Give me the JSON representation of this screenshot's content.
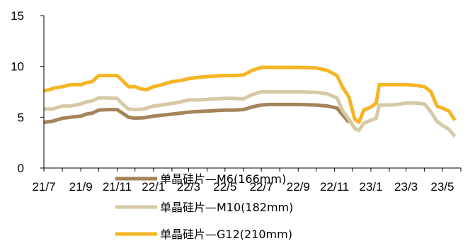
{
  "chart_data": {
    "type": "line",
    "title": "",
    "xlabel": "",
    "ylabel": "",
    "ylim": [
      0,
      15
    ],
    "yticks": [
      0,
      5,
      10,
      15
    ],
    "x_tick_labels": [
      "21/7",
      "21/9",
      "21/11",
      "22/1",
      "22/3",
      "22/5",
      "22/7",
      "22/9",
      "22/11",
      "23/1",
      "23/3",
      "23/5"
    ],
    "x_range_months": [
      "2021-07",
      "2023-05"
    ],
    "grid": false,
    "legend_position": "bottom",
    "series": [
      {
        "name": "单晶硅片—M6(166mm)",
        "color": "#A5845A",
        "points": [
          [
            "2021-07-01",
            4.5
          ],
          [
            "2021-07-15",
            4.6
          ],
          [
            "2021-08-01",
            4.9
          ],
          [
            "2021-08-15",
            5.0
          ],
          [
            "2021-09-01",
            5.1
          ],
          [
            "2021-09-10",
            5.3
          ],
          [
            "2021-09-20",
            5.4
          ],
          [
            "2021-10-01",
            5.7
          ],
          [
            "2021-10-15",
            5.75
          ],
          [
            "2021-11-01",
            5.75
          ],
          [
            "2021-11-10",
            5.4
          ],
          [
            "2021-11-20",
            5.0
          ],
          [
            "2021-12-01",
            4.9
          ],
          [
            "2021-12-15",
            4.95
          ],
          [
            "2022-01-01",
            5.1
          ],
          [
            "2022-01-15",
            5.2
          ],
          [
            "2022-02-01",
            5.3
          ],
          [
            "2022-02-15",
            5.4
          ],
          [
            "2022-03-01",
            5.5
          ],
          [
            "2022-03-15",
            5.55
          ],
          [
            "2022-04-01",
            5.6
          ],
          [
            "2022-04-15",
            5.65
          ],
          [
            "2022-05-01",
            5.7
          ],
          [
            "2022-05-15",
            5.7
          ],
          [
            "2022-06-01",
            5.75
          ],
          [
            "2022-06-15",
            6.0
          ],
          [
            "2022-07-01",
            6.2
          ],
          [
            "2022-07-15",
            6.25
          ],
          [
            "2022-08-01",
            6.25
          ],
          [
            "2022-09-01",
            6.25
          ],
          [
            "2022-10-01",
            6.2
          ],
          [
            "2022-10-20",
            6.1
          ],
          [
            "2022-11-05",
            5.9
          ],
          [
            "2022-11-15",
            5.2
          ],
          [
            "2022-11-25",
            4.5
          ]
        ]
      },
      {
        "name": "单晶硅片—M10(182mm)",
        "color": "#D6C9A6",
        "points": [
          [
            "2021-07-01",
            5.8
          ],
          [
            "2021-07-15",
            5.8
          ],
          [
            "2021-08-01",
            6.1
          ],
          [
            "2021-08-15",
            6.1
          ],
          [
            "2021-09-01",
            6.3
          ],
          [
            "2021-09-10",
            6.5
          ],
          [
            "2021-09-20",
            6.6
          ],
          [
            "2021-10-01",
            6.9
          ],
          [
            "2021-10-15",
            6.9
          ],
          [
            "2021-11-01",
            6.85
          ],
          [
            "2021-11-10",
            6.3
          ],
          [
            "2021-11-20",
            5.8
          ],
          [
            "2021-12-01",
            5.75
          ],
          [
            "2021-12-15",
            5.8
          ],
          [
            "2022-01-01",
            6.1
          ],
          [
            "2022-01-15",
            6.2
          ],
          [
            "2022-02-01",
            6.35
          ],
          [
            "2022-02-15",
            6.5
          ],
          [
            "2022-03-01",
            6.7
          ],
          [
            "2022-03-15",
            6.7
          ],
          [
            "2022-04-01",
            6.75
          ],
          [
            "2022-04-15",
            6.8
          ],
          [
            "2022-05-01",
            6.85
          ],
          [
            "2022-05-15",
            6.85
          ],
          [
            "2022-06-01",
            6.8
          ],
          [
            "2022-06-15",
            7.2
          ],
          [
            "2022-07-01",
            7.5
          ],
          [
            "2022-07-15",
            7.5
          ],
          [
            "2022-08-01",
            7.5
          ],
          [
            "2022-09-01",
            7.5
          ],
          [
            "2022-10-01",
            7.45
          ],
          [
            "2022-10-20",
            7.3
          ],
          [
            "2022-11-05",
            6.9
          ],
          [
            "2022-11-15",
            5.6
          ],
          [
            "2022-11-25",
            4.8
          ],
          [
            "2022-12-05",
            3.9
          ],
          [
            "2022-12-12",
            3.7
          ],
          [
            "2022-12-20",
            4.4
          ],
          [
            "2023-01-01",
            4.7
          ],
          [
            "2023-01-10",
            4.9
          ],
          [
            "2023-01-15",
            6.2
          ],
          [
            "2023-02-01",
            6.2
          ],
          [
            "2023-02-15",
            6.25
          ],
          [
            "2023-03-01",
            6.4
          ],
          [
            "2023-03-15",
            6.4
          ],
          [
            "2023-04-01",
            6.3
          ],
          [
            "2023-04-12",
            5.5
          ],
          [
            "2023-04-22",
            4.6
          ],
          [
            "2023-05-01",
            4.2
          ],
          [
            "2023-05-12",
            3.8
          ],
          [
            "2023-05-22",
            3.1
          ]
        ]
      },
      {
        "name": "单晶硅片—G12(210mm)",
        "color": "#F5B525",
        "points": [
          [
            "2021-07-01",
            7.6
          ],
          [
            "2021-07-10",
            7.7
          ],
          [
            "2021-07-20",
            7.9
          ],
          [
            "2021-08-01",
            8.0
          ],
          [
            "2021-08-15",
            8.2
          ],
          [
            "2021-09-01",
            8.2
          ],
          [
            "2021-09-10",
            8.4
          ],
          [
            "2021-09-20",
            8.5
          ],
          [
            "2021-10-01",
            9.1
          ],
          [
            "2021-10-15",
            9.1
          ],
          [
            "2021-11-01",
            9.1
          ],
          [
            "2021-11-10",
            8.6
          ],
          [
            "2021-11-20",
            8.0
          ],
          [
            "2021-12-01",
            8.0
          ],
          [
            "2021-12-10",
            7.8
          ],
          [
            "2021-12-20",
            7.7
          ],
          [
            "2022-01-01",
            8.0
          ],
          [
            "2022-01-15",
            8.2
          ],
          [
            "2022-02-01",
            8.5
          ],
          [
            "2022-02-15",
            8.6
          ],
          [
            "2022-03-01",
            8.8
          ],
          [
            "2022-03-15",
            8.9
          ],
          [
            "2022-04-01",
            9.0
          ],
          [
            "2022-04-15",
            9.05
          ],
          [
            "2022-05-01",
            9.1
          ],
          [
            "2022-05-15",
            9.1
          ],
          [
            "2022-06-01",
            9.15
          ],
          [
            "2022-06-15",
            9.6
          ],
          [
            "2022-07-01",
            9.9
          ],
          [
            "2022-07-15",
            9.9
          ],
          [
            "2022-08-01",
            9.9
          ],
          [
            "2022-09-01",
            9.9
          ],
          [
            "2022-10-01",
            9.85
          ],
          [
            "2022-10-20",
            9.6
          ],
          [
            "2022-11-05",
            9.1
          ],
          [
            "2022-11-15",
            7.9
          ],
          [
            "2022-11-25",
            7.0
          ],
          [
            "2022-12-05",
            4.8
          ],
          [
            "2022-12-12",
            4.5
          ],
          [
            "2022-12-20",
            5.7
          ],
          [
            "2023-01-01",
            6.0
          ],
          [
            "2023-01-10",
            6.4
          ],
          [
            "2023-01-15",
            8.2
          ],
          [
            "2023-02-01",
            8.2
          ],
          [
            "2023-02-15",
            8.2
          ],
          [
            "2023-03-01",
            8.2
          ],
          [
            "2023-03-15",
            8.15
          ],
          [
            "2023-04-01",
            8.0
          ],
          [
            "2023-04-12",
            7.5
          ],
          [
            "2023-04-22",
            6.1
          ],
          [
            "2023-05-01",
            5.9
          ],
          [
            "2023-05-12",
            5.6
          ],
          [
            "2023-05-22",
            4.7
          ]
        ]
      }
    ]
  }
}
